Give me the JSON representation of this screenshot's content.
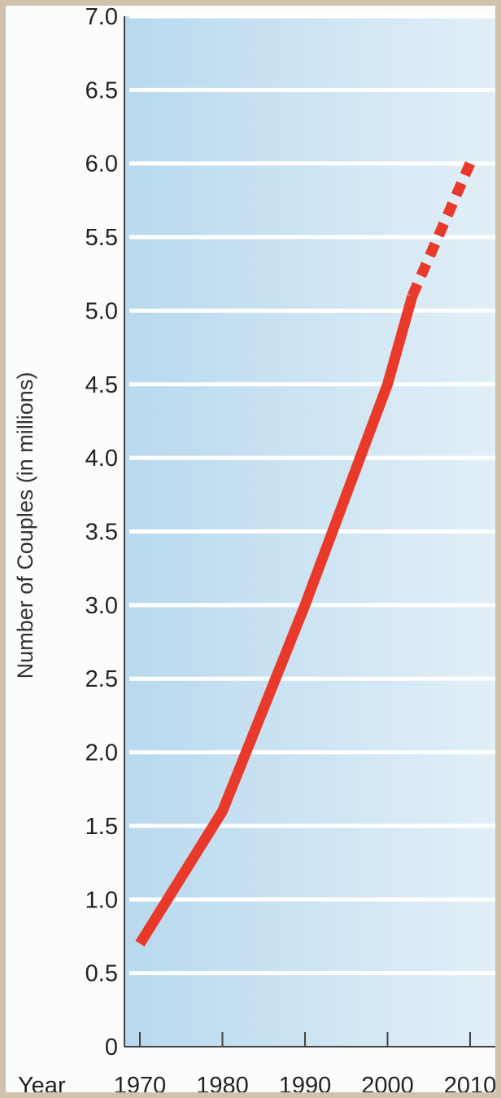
{
  "chart_data": {
    "type": "line",
    "title": "",
    "xlabel": "Year",
    "ylabel": "Number of Couples (in millions)",
    "x": [
      1970,
      1980,
      1990,
      2000,
      2003,
      2010
    ],
    "ylim": [
      0,
      7.0
    ],
    "xlim": [
      1970,
      2010
    ],
    "yticks": [
      "0",
      "0.5",
      "1.0",
      "1.5",
      "2.0",
      "2.5",
      "3.0",
      "3.5",
      "4.0",
      "4.5",
      "5.0",
      "5.5",
      "6.0",
      "6.5",
      "7.0"
    ],
    "xticks": [
      "1970",
      "1980",
      "1990",
      "2000",
      "2010"
    ],
    "series": [
      {
        "values": [
          0.7,
          1.6,
          3.0,
          4.5,
          5.1,
          6.0
        ],
        "solid_until": 2003,
        "projected_after": 2003,
        "color": "#e8392a"
      }
    ],
    "grid": true,
    "background": "light-blue gradient"
  }
}
